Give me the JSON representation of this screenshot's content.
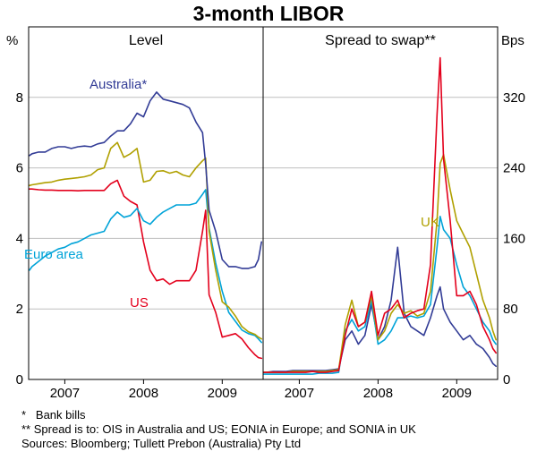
{
  "title": "3-month LIBOR",
  "panels": [
    {
      "title": "Level"
    },
    {
      "title": "Spread to swap**"
    }
  ],
  "axes": {
    "left_unit": "%",
    "right_unit": "Bps",
    "left_ticks": [
      0,
      2,
      4,
      6,
      8
    ],
    "right_ticks": [
      0,
      80,
      160,
      240,
      320
    ],
    "left_ylim": [
      0,
      10
    ],
    "right_ylim": [
      0,
      400
    ],
    "x_tick_labels": [
      "2007",
      "2008",
      "2009"
    ],
    "x_tick_positions": [
      2007,
      2008,
      2009
    ],
    "xlim": [
      2006.54,
      2009.52
    ],
    "grid": "on"
  },
  "colors": {
    "navy": "#323c96",
    "red": "#e3001c",
    "cyan": "#00a3d8",
    "olive": "#b0a000",
    "grid": "#bfbfbf",
    "axis": "#000000"
  },
  "annotations": [
    {
      "text": "Australia*",
      "color": "#323c96",
      "panel": "left"
    },
    {
      "text": "Euro area",
      "color": "#00a3d8",
      "panel": "left"
    },
    {
      "text": "US",
      "color": "#e3001c",
      "panel": "left"
    },
    {
      "text": "UK",
      "color": "#b0a000",
      "panel": "right"
    }
  ],
  "footnotes": [
    "*   Bank bills",
    "** Spread is to: OIS in Australia and US; EONIA in Europe; and SONIA in UK",
    "Sources: Bloomberg; Tullett Prebon (Australia) Pty Ltd"
  ],
  "chart_data": [
    {
      "type": "line",
      "panel": "left",
      "title": "Level",
      "ylabel": "%",
      "ylim": [
        0,
        10
      ],
      "x_years": [
        2006.55,
        2006.583,
        2006.667,
        2006.75,
        2006.833,
        2006.917,
        2007.0,
        2007.083,
        2007.167,
        2007.25,
        2007.333,
        2007.417,
        2007.5,
        2007.583,
        2007.667,
        2007.75,
        2007.833,
        2007.917,
        2008.0,
        2008.083,
        2008.167,
        2008.25,
        2008.333,
        2008.417,
        2008.5,
        2008.583,
        2008.667,
        2008.75,
        2008.79,
        2008.833,
        2008.917,
        2009.0,
        2009.083,
        2009.167,
        2009.25,
        2009.333,
        2009.417,
        2009.46,
        2009.5
      ],
      "series": [
        {
          "name": "US",
          "color": "#e3001c",
          "values": [
            5.4,
            5.4,
            5.38,
            5.37,
            5.37,
            5.36,
            5.36,
            5.36,
            5.35,
            5.36,
            5.36,
            5.36,
            5.36,
            5.55,
            5.65,
            5.2,
            5.05,
            4.95,
            3.9,
            3.1,
            2.8,
            2.85,
            2.7,
            2.8,
            2.8,
            2.8,
            3.1,
            4.2,
            4.8,
            2.4,
            1.9,
            1.2,
            1.25,
            1.3,
            1.15,
            0.9,
            0.7,
            0.62,
            0.6
          ]
        },
        {
          "name": "Euro area",
          "color": "#00a3d8",
          "values": [
            3.1,
            3.2,
            3.35,
            3.5,
            3.6,
            3.7,
            3.75,
            3.85,
            3.9,
            4.0,
            4.1,
            4.15,
            4.2,
            4.55,
            4.75,
            4.6,
            4.65,
            4.85,
            4.5,
            4.4,
            4.6,
            4.75,
            4.85,
            4.95,
            4.95,
            4.95,
            5.0,
            5.25,
            5.38,
            4.3,
            3.3,
            2.5,
            1.9,
            1.65,
            1.4,
            1.3,
            1.25,
            1.15,
            1.05
          ]
        },
        {
          "name": "UK",
          "color": "#b0a000",
          "values": [
            5.5,
            5.52,
            5.55,
            5.58,
            5.6,
            5.65,
            5.68,
            5.7,
            5.72,
            5.75,
            5.8,
            5.95,
            6.0,
            6.55,
            6.72,
            6.3,
            6.4,
            6.55,
            5.6,
            5.65,
            5.9,
            5.92,
            5.85,
            5.9,
            5.8,
            5.75,
            6.0,
            6.2,
            6.28,
            4.2,
            3.1,
            2.2,
            2.05,
            1.8,
            1.5,
            1.35,
            1.28,
            1.2,
            1.15
          ]
        },
        {
          "name": "Australia",
          "color": "#323c96",
          "values": [
            6.35,
            6.4,
            6.45,
            6.45,
            6.55,
            6.6,
            6.6,
            6.55,
            6.6,
            6.62,
            6.6,
            6.68,
            6.72,
            6.9,
            7.05,
            7.05,
            7.25,
            7.55,
            7.45,
            7.9,
            8.15,
            7.95,
            7.9,
            7.85,
            7.8,
            7.7,
            7.3,
            7.0,
            6.1,
            4.8,
            4.2,
            3.4,
            3.2,
            3.2,
            3.15,
            3.15,
            3.2,
            3.4,
            3.9
          ]
        }
      ]
    },
    {
      "type": "line",
      "panel": "right",
      "title": "Spread to swap**",
      "ylabel": "Bps",
      "ylim": [
        0,
        400
      ],
      "x_years": [
        2006.55,
        2006.583,
        2006.667,
        2006.75,
        2006.833,
        2006.917,
        2007.0,
        2007.083,
        2007.167,
        2007.25,
        2007.333,
        2007.417,
        2007.5,
        2007.583,
        2007.667,
        2007.75,
        2007.833,
        2007.917,
        2008.0,
        2008.083,
        2008.167,
        2008.25,
        2008.333,
        2008.417,
        2008.5,
        2008.583,
        2008.667,
        2008.75,
        2008.79,
        2008.833,
        2008.917,
        2009.0,
        2009.083,
        2009.167,
        2009.25,
        2009.333,
        2009.417,
        2009.46,
        2009.5
      ],
      "series": [
        {
          "name": "Australia",
          "color": "#323c96",
          "values": [
            8,
            8,
            9,
            9,
            9,
            10,
            10,
            10,
            10,
            10,
            10,
            11,
            12,
            45,
            55,
            40,
            50,
            85,
            45,
            60,
            90,
            150,
            75,
            60,
            55,
            50,
            70,
            95,
            105,
            80,
            65,
            55,
            45,
            50,
            40,
            35,
            25,
            18,
            15
          ]
        },
        {
          "name": "Euro area",
          "color": "#00a3d8",
          "values": [
            6,
            6,
            6,
            6,
            6,
            6,
            6,
            6,
            6,
            7,
            7,
            7,
            8,
            55,
            68,
            55,
            60,
            90,
            40,
            45,
            55,
            70,
            70,
            72,
            70,
            72,
            85,
            150,
            185,
            170,
            160,
            130,
            105,
            95,
            80,
            65,
            55,
            45,
            40
          ]
        },
        {
          "name": "UK",
          "color": "#b0a000",
          "values": [
            8,
            8,
            8,
            8,
            8,
            9,
            9,
            9,
            9,
            9,
            9,
            10,
            11,
            62,
            90,
            60,
            65,
            95,
            45,
            55,
            75,
            85,
            75,
            78,
            72,
            75,
            100,
            180,
            245,
            255,
            215,
            180,
            165,
            150,
            120,
            90,
            70,
            55,
            45
          ]
        },
        {
          "name": "US",
          "color": "#e3001c",
          "values": [
            8,
            8,
            8,
            8,
            8,
            8,
            8,
            8,
            9,
            8,
            8,
            9,
            10,
            50,
            80,
            60,
            65,
            100,
            50,
            75,
            80,
            90,
            70,
            75,
            78,
            80,
            130,
            300,
            365,
            250,
            180,
            95,
            95,
            100,
            85,
            60,
            45,
            35,
            30
          ]
        }
      ]
    }
  ]
}
